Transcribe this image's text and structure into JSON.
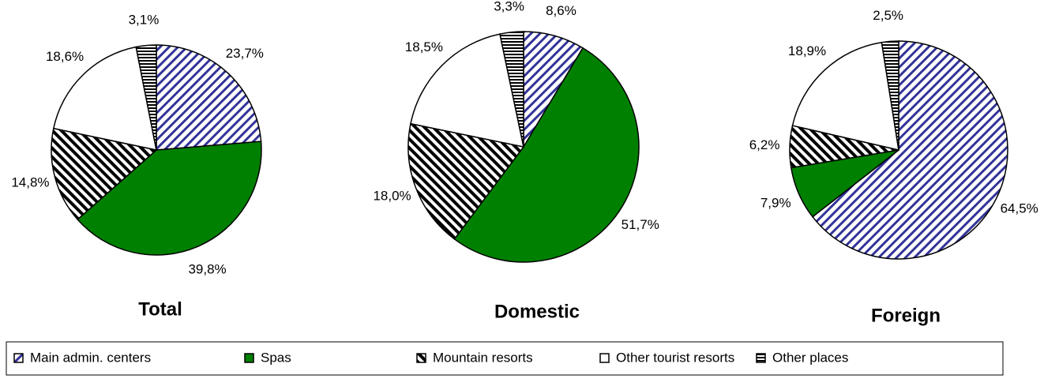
{
  "chart_data": [
    {
      "type": "pie",
      "title": "Total",
      "values": [
        23.7,
        39.8,
        14.8,
        18.6,
        3.1
      ],
      "value_labels": [
        "23,7%",
        "39,8%",
        "14,8%",
        "18,6%",
        "3,1%"
      ]
    },
    {
      "type": "pie",
      "title": "Domestic",
      "values": [
        8.6,
        51.7,
        18.0,
        18.5,
        3.3
      ],
      "value_labels": [
        "8,6%",
        "51,7%",
        "18,0%",
        "18,5%",
        "3,3%"
      ]
    },
    {
      "type": "pie",
      "title": "Foreign",
      "values": [
        64.5,
        7.9,
        6.2,
        18.9,
        2.5
      ],
      "value_labels": [
        "64,5%",
        "7,9%",
        "6,2%",
        "18,9%",
        "2,5%"
      ]
    }
  ],
  "legend": {
    "categories": [
      "Main admin. centers",
      "Spas",
      "Mountain resorts",
      "Other tourist resorts",
      "Other places"
    ],
    "fills": [
      "url(#p-blue)",
      "#008000",
      "url(#p-black)",
      "#ffffff",
      "url(#p-horiz)"
    ]
  }
}
